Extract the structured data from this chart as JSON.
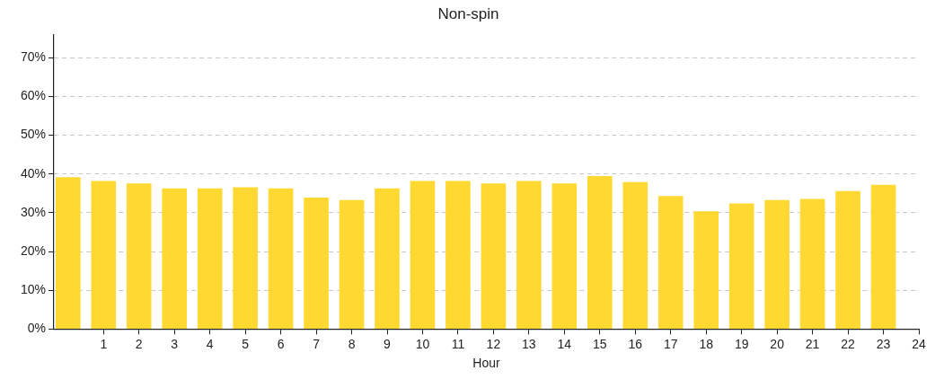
{
  "chart_data": {
    "type": "bar",
    "title": "Non-spin",
    "xlabel": "Hour",
    "x": [
      0,
      1,
      2,
      3,
      4,
      5,
      6,
      7,
      8,
      9,
      10,
      11,
      12,
      13,
      14,
      15,
      16,
      17,
      18,
      19,
      20,
      21,
      22,
      23
    ],
    "series": [
      {
        "color": "#ffd932",
        "values": [
          39.2,
          38.2,
          37.6,
          36.3,
          36.3,
          36.6,
          36.3,
          33.9,
          33.3,
          36.3,
          38.2,
          38.2,
          37.6,
          38.2,
          37.6,
          39.5,
          37.9,
          34.3,
          30.4,
          32.4,
          33.3,
          33.6,
          35.6,
          37.2
        ]
      }
    ],
    "xlim": [
      -0.4,
      24
    ],
    "xticks": [
      1,
      2,
      3,
      4,
      5,
      6,
      7,
      8,
      9,
      10,
      11,
      12,
      13,
      14,
      15,
      16,
      17,
      18,
      19,
      20,
      21,
      22,
      23,
      24
    ],
    "ylim": [
      0,
      76
    ],
    "yticks": [
      {
        "value": 0,
        "label": "0%"
      },
      {
        "value": 10,
        "label": "10%"
      },
      {
        "value": 20,
        "label": "20%"
      },
      {
        "value": 30,
        "label": "30%"
      },
      {
        "value": 40,
        "label": "40%"
      },
      {
        "value": 50,
        "label": "50%"
      },
      {
        "value": 60,
        "label": "60%"
      },
      {
        "value": 70,
        "label": "70%"
      }
    ],
    "grid": "y",
    "legend": false
  }
}
